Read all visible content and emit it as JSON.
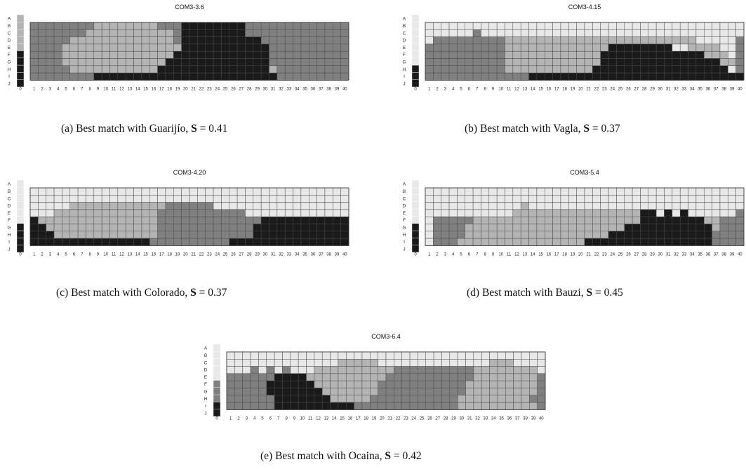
{
  "palette": {
    "1": "#e8e8e8",
    "2": "#b4b4b4",
    "3": "#808080",
    "4": "#1a1a1a",
    "grid": "#4a4a4a"
  },
  "row_labels": [
    "A",
    "B",
    "C",
    "D",
    "E",
    "F",
    "G",
    "H",
    "I",
    "J"
  ],
  "col_labels": [
    "0",
    "1",
    "2",
    "3",
    "4",
    "5",
    "6",
    "7",
    "8",
    "9",
    "10",
    "11",
    "12",
    "13",
    "14",
    "15",
    "16",
    "17",
    "18",
    "19",
    "20",
    "21",
    "22",
    "23",
    "24",
    "25",
    "26",
    "27",
    "28",
    "29",
    "30",
    "31",
    "32",
    "33",
    "34",
    "35",
    "36",
    "37",
    "38",
    "39",
    "40"
  ],
  "chart_data": [
    {
      "type": "heatmap",
      "title": "COM3-3.6",
      "caption": {
        "prefix": "(a) Best match with Guarijío,",
        "s_label": "S",
        "s_value": "= 0.41"
      },
      "legend_column": [
        2,
        2,
        2,
        2,
        2,
        4,
        4,
        4,
        4,
        4
      ],
      "rows": [
        "3333333322222222333444444443333333333333",
        "3333333222222222223444444443333333333333",
        "3333322222222222223444444444433333333333",
        "3333222222222222222444444444443333333333",
        "3333222222222222224444444444443333333333",
        "3333222222222222244444444444443333333333",
        "3333322222222222444444444444442333333333",
        "3333333344444444444444444444444333333333"
      ]
    },
    {
      "type": "heatmap",
      "title": "COM3-4.15",
      "caption": {
        "prefix": "(b) Best match with Vagla,",
        "s_label": "S",
        "s_value": "= 0.37"
      },
      "legend_column": [
        1,
        1,
        1,
        1,
        1,
        1,
        1,
        4,
        4,
        4
      ],
      "rows": [
        "1111111111111111111111111111111111111111",
        "1111113111111111111111111111111111111111",
        "1333333333222222222222222222222222111113",
        "3333333333222222222222244444444112222113",
        "3333333333222222222222444444444444422213",
        "3333333333222222222222444444444444444223",
        "3333333333222222222224444444444444444413",
        "3333333333333444444444444444444444444444"
      ]
    },
    {
      "type": "heatmap",
      "title": "COM3-4.20",
      "caption": {
        "prefix": "(c) Best match with Colorado,",
        "s_label": "S",
        "s_value": "= 0.37"
      },
      "legend_column": [
        1,
        1,
        1,
        1,
        1,
        1,
        4,
        4,
        4,
        4
      ],
      "rows": [
        "1111111111111111111111111111111111111111",
        "1111111111111111111111111111111111111111",
        "1111122222222222233333311111111111111111",
        "1112222222222222333333333331111111111111",
        "4222222222222222333333333333344444444444",
        "4422222222222222333333333333444444444444",
        "4442222222222222333333333333444444444444",
        "4444444444444443333333333444444444444444"
      ]
    },
    {
      "type": "heatmap",
      "title": "COM3-5.4",
      "caption": {
        "prefix": "(d) Best match with Bauzi,",
        "s_label": "S",
        "s_value": "= 0.45"
      },
      "legend_column": [
        1,
        1,
        1,
        1,
        1,
        1,
        4,
        4,
        4,
        4
      ],
      "rows": [
        "1111111111111111111111111111111111111111",
        "1111111111111111111111111111111111111111",
        "1111111111112111111111111111111111111111",
        "1111111111122222222222222224414141111113",
        "1333332222222222222222222224444444422333",
        "1333322222222222222222222444444444442333",
        "1333322222222222222222244444444444443333",
        "1333222222222222222244444444444444443333"
      ]
    },
    {
      "type": "heatmap",
      "title": "COM3-6.4",
      "caption": {
        "prefix": "(e) Best match with Ocaina,",
        "s_label": "S",
        "s_value": "= 0.42"
      },
      "legend_column": [
        1,
        1,
        1,
        1,
        1,
        3,
        3,
        3,
        4,
        4
      ],
      "rows": [
        "1111111111111111111111111111111111111111",
        "1111111111111122222111111111111112221111",
        "1113131311122222222223333333333222222221",
        "3333334444222222222233333333333222222223",
        "3333344444422222222333333333332222222223",
        "3333344444442222222333333333332222222223",
        "3333334444444222223333333333322222222233",
        "3333334444444444333333333333322222222223"
      ]
    }
  ]
}
